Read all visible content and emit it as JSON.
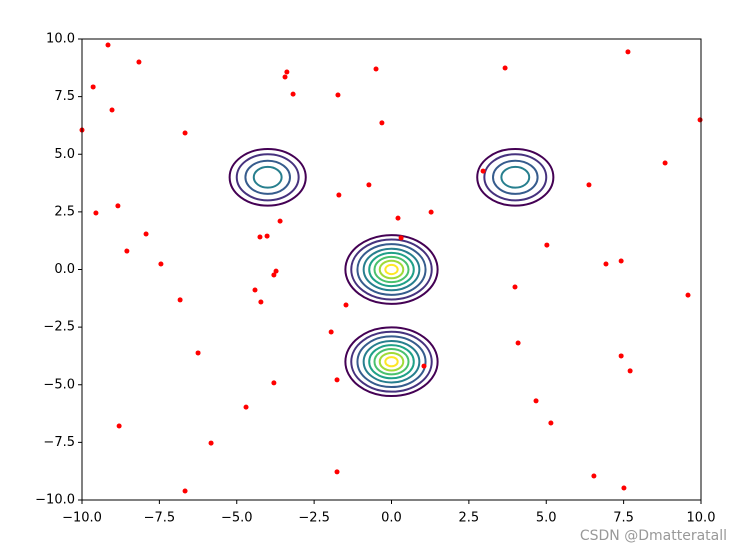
{
  "chart_data": {
    "type": "contour",
    "xlim": [
      -10,
      10
    ],
    "ylim": [
      -10,
      10
    ],
    "xticks": [
      {
        "value": -10,
        "label": "−10.0"
      },
      {
        "value": -7.5,
        "label": "−7.5"
      },
      {
        "value": -5,
        "label": "−5.0"
      },
      {
        "value": -2.5,
        "label": "−2.5"
      },
      {
        "value": 0,
        "label": "0.0"
      },
      {
        "value": 2.5,
        "label": "2.5"
      },
      {
        "value": 5,
        "label": "5.0"
      },
      {
        "value": 7.5,
        "label": "7.5"
      },
      {
        "value": 10,
        "label": "10.0"
      }
    ],
    "yticks": [
      {
        "value": -10,
        "label": "−10.0"
      },
      {
        "value": -7.5,
        "label": "−7.5"
      },
      {
        "value": -5,
        "label": "−5.0"
      },
      {
        "value": -2.5,
        "label": "−2.5"
      },
      {
        "value": 0,
        "label": "0.0"
      },
      {
        "value": 2.5,
        "label": "2.5"
      },
      {
        "value": 5,
        "label": "5.0"
      },
      {
        "value": 7.5,
        "label": "7.5"
      },
      {
        "value": 10,
        "label": "10.0"
      }
    ],
    "level_colors": [
      "#440154",
      "#46327e",
      "#365c8d",
      "#277f8e",
      "#1fa187",
      "#4ac16d",
      "#a0da39",
      "#fde725"
    ],
    "contours": [
      {
        "x": -4,
        "y": 4,
        "radii": [
          1.23,
          1.0,
          0.72,
          0.45
        ]
      },
      {
        "x": 4,
        "y": 4,
        "radii": [
          1.23,
          1.0,
          0.72,
          0.45
        ]
      },
      {
        "x": 0,
        "y": 0,
        "radii": [
          1.49,
          1.3,
          1.1,
          0.9,
          0.72,
          0.55,
          0.38,
          0.2
        ]
      },
      {
        "x": 0,
        "y": -4,
        "radii": [
          1.49,
          1.3,
          1.1,
          0.9,
          0.72,
          0.55,
          0.38,
          0.2
        ]
      }
    ],
    "scatter": {
      "color": "#ff0000",
      "x": [
        -9.16,
        -8.16,
        -9.64,
        -9.03,
        -10,
        -6.67,
        -9.55,
        -8.84,
        -7.93,
        -8.55,
        -7.45,
        -6.83,
        -6.25,
        -8.8,
        -6.67,
        -5.83,
        -4.7,
        -3.8,
        -4.41,
        -4.22,
        -4.25,
        -4.02,
        -3.73,
        -3.8,
        -3.6,
        -3.38,
        -3.44,
        -3.18,
        -1.73,
        -0.5,
        -0.31,
        -1.7,
        -0.73,
        0.21,
        1.28,
        0.31,
        -1.47,
        -1.95,
        -1.76,
        -1.76,
        1.05,
        3.67,
        7.64,
        9.97,
        8.84,
        2.96,
        6.38,
        5.02,
        6.93,
        7.42,
        9.58,
        3.99,
        4.09,
        7.42,
        7.71,
        4.67,
        5.15,
        6.54,
        7.51
      ],
      "y": [
        9.74,
        9.0,
        7.92,
        6.92,
        6.05,
        5.92,
        2.45,
        2.76,
        1.54,
        0.8,
        0.24,
        -1.32,
        -3.62,
        -6.79,
        -9.61,
        -7.53,
        -5.97,
        -4.92,
        -0.89,
        -1.41,
        1.41,
        1.45,
        -0.07,
        -0.24,
        2.1,
        8.57,
        8.35,
        7.61,
        7.57,
        8.7,
        6.36,
        3.23,
        3.67,
        2.23,
        2.49,
        1.37,
        -1.54,
        -2.71,
        -4.79,
        -8.78,
        -4.19,
        8.74,
        9.44,
        6.49,
        4.62,
        4.27,
        3.67,
        1.06,
        0.24,
        0.37,
        -1.11,
        -0.76,
        -3.19,
        -3.75,
        -4.4,
        -5.7,
        -6.66,
        -8.96,
        -9.48
      ]
    },
    "watermark": "CSDN @Dmatteratall"
  }
}
